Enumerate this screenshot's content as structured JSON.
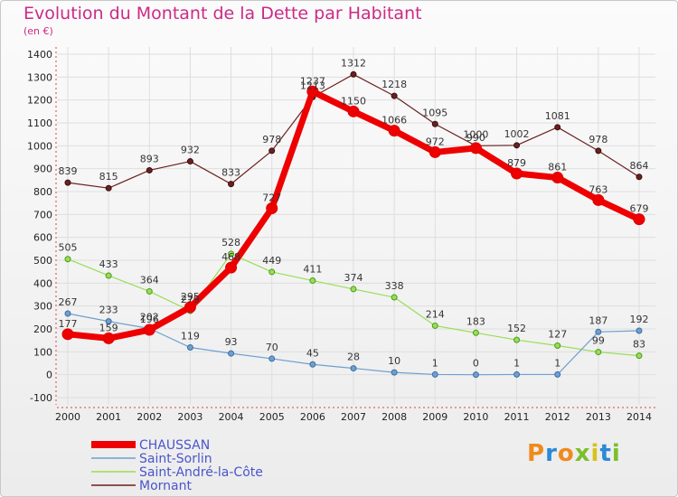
{
  "title": "Evolution du Montant de la Dette par Habitant",
  "subtitle": "(en €)",
  "logo": "Proxiti",
  "chart_data": {
    "type": "line",
    "x": [
      "2000",
      "2001",
      "2002",
      "2003",
      "2004",
      "2005",
      "2006",
      "2007",
      "2008",
      "2009",
      "2010",
      "2011",
      "2012",
      "2013",
      "2014"
    ],
    "ylim": [
      -100,
      1400
    ],
    "yticks": [
      -100,
      0,
      100,
      200,
      300,
      400,
      500,
      600,
      700,
      800,
      900,
      1000,
      1100,
      1200,
      1300,
      1400
    ],
    "grid": true,
    "legend_position": "bottom-left",
    "series": [
      {
        "name": "CHAUSSAN",
        "color": "#ee0000",
        "values": [
          177,
          159,
          196,
          295,
          468,
          727,
          1237,
          1150,
          1066,
          972,
          990,
          879,
          861,
          763,
          679
        ]
      },
      {
        "name": "Saint-Sorlin",
        "color": "#6e9fcf",
        "values": [
          267,
          233,
          202,
          119,
          93,
          70,
          45,
          28,
          10,
          1,
          0,
          1,
          1,
          187,
          192
        ]
      },
      {
        "name": "Saint-André-la-Côte",
        "color": "#99dd55",
        "values": [
          505,
          433,
          364,
          279,
          528,
          449,
          411,
          374,
          338,
          214,
          183,
          152,
          127,
          99,
          83
        ]
      },
      {
        "name": "Mornant",
        "color": "#6b2020",
        "values": [
          839,
          815,
          893,
          932,
          833,
          978,
          1213,
          1312,
          1218,
          1095,
          1000,
          1002,
          1081,
          978,
          864
        ]
      }
    ]
  }
}
